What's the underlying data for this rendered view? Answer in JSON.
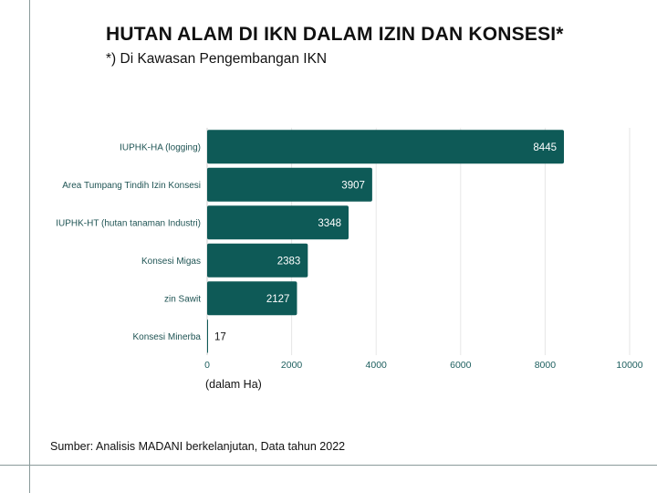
{
  "chart_data": {
    "type": "bar",
    "orientation": "horizontal",
    "title": "HUTAN ALAM DI IKN DALAM IZIN DAN KONSESI*",
    "subtitle": "*) Di Kawasan Pengembangan IKN",
    "categories": [
      "IUPHK-HA (logging)",
      "Area Tumpang Tindih Izin Konsesi",
      "IUPHK-HT (hutan tanaman Industri)",
      "Konsesi Migas",
      "zin Sawit",
      "Konsesi Minerba"
    ],
    "values": [
      8445,
      3907,
      3348,
      2383,
      2127,
      17
    ],
    "value_labels": [
      "8445",
      "3907",
      "3348",
      "2383",
      "2127",
      "17"
    ],
    "xlim": [
      0,
      10000
    ],
    "x_ticks": [
      0,
      2000,
      4000,
      6000,
      8000,
      10000
    ],
    "x_tick_labels": [
      "0",
      "2000",
      "4000",
      "6000",
      "8000",
      "10000"
    ],
    "xlabel": "(dalam Ha)",
    "ylabel": "",
    "grid": "vertical",
    "bar_color": "#0e5a57"
  },
  "footer": {
    "source": "Sumber: Analisis MADANI berkelanjutan, Data tahun 2022"
  }
}
